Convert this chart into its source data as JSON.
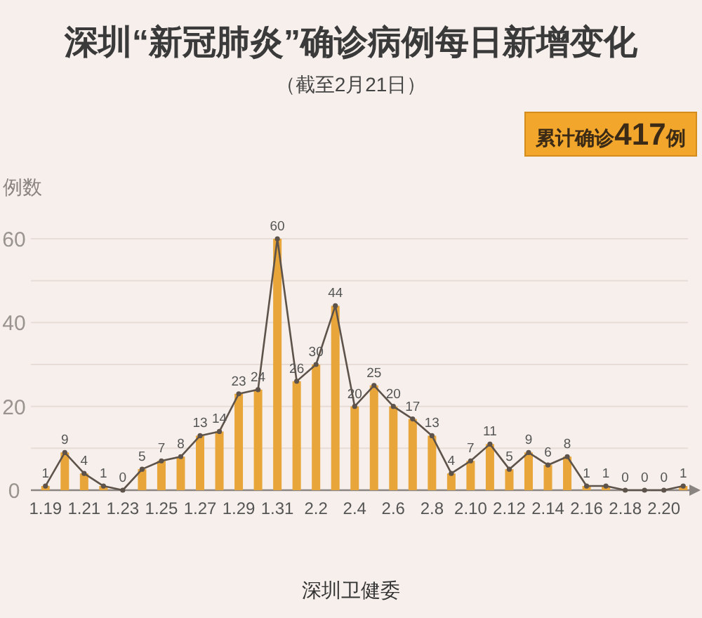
{
  "chart_data": {
    "type": "bar",
    "title": "深圳“新冠肺炎”确诊病例每日新增变化",
    "subtitle": "（截至2月21日）",
    "ylabel": "例数",
    "annotations": [
      "累计确诊**417**例",
      "深圳卫健委"
    ],
    "categories": [
      "1.19",
      null,
      "1.21",
      null,
      "1.23",
      null,
      "1.25",
      null,
      "1.27",
      null,
      "1.29",
      null,
      "1.31",
      null,
      "2.2",
      null,
      "2.4",
      null,
      "2.6",
      null,
      "2.8",
      null,
      "2.10",
      null,
      "2.12",
      null,
      "2.14",
      null,
      "2.16",
      null,
      "2.18",
      null,
      "2.20",
      null
    ],
    "series": [
      {
        "color": "#e8a53a",
        "values": [
          1,
          9,
          4,
          1,
          0,
          5,
          7,
          8,
          13,
          14,
          23,
          24,
          60,
          26,
          30,
          44,
          20,
          25,
          20,
          17,
          13,
          4,
          7,
          11,
          5,
          9,
          6,
          8,
          1,
          1,
          0,
          0,
          0,
          1
        ]
      },
      {
        "type": "line",
        "color": "#5e534a",
        "values": [
          1,
          9,
          4,
          1,
          0,
          5,
          7,
          8,
          13,
          14,
          23,
          24,
          60,
          26,
          30,
          44,
          20,
          25,
          20,
          17,
          13,
          4,
          7,
          11,
          5,
          9,
          6,
          8,
          1,
          1,
          0,
          0,
          0,
          1
        ],
        "value_labels": [
          "1",
          "9",
          "4",
          "1",
          "0",
          "5",
          "7",
          "8",
          "13",
          "14",
          "23",
          "24",
          "60",
          "26",
          "30",
          "44",
          "20",
          "25",
          "20",
          "17",
          "13",
          "4",
          "7",
          "11",
          "5",
          "9",
          "6",
          "8",
          "1",
          "1",
          "0",
          "0",
          "0",
          "1"
        ]
      }
    ],
    "ylim": [
      0,
      60
    ],
    "yticks": [
      0,
      {
        "value": 10,
        "label": null
      },
      20,
      {
        "value": 30,
        "label": null
      },
      40,
      {
        "value": 50,
        "label": null
      },
      60
    ],
    "grid": "y",
    "marker": "circle"
  }
}
